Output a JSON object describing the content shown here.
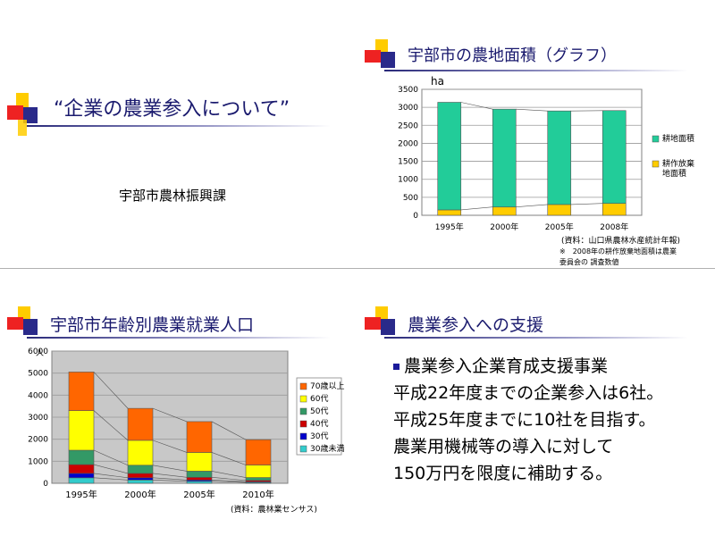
{
  "slides": {
    "title_slide": {
      "title": "“企業の農業参入について”",
      "subtitle": "宇部市農林振興課"
    },
    "farmland_slide": {
      "title": "宇部市の農地面積（グラフ）",
      "source": "(資料：山口県農林水産統計年報)",
      "note_line1": "※　2008年の耕作放棄地面積は農業",
      "note_line2": "委員会の 調査数値"
    },
    "workforce_slide": {
      "title": "宇部市年齢別農業就業人口",
      "source": "(資料：農林業センサス)"
    },
    "support_slide": {
      "title": "農業参入への支援",
      "bullet": "農業参入企業育成支援事業",
      "line1": "平成22年度までの企業参入は6社。",
      "line2": "平成25年度までに10社を目指す。",
      "line3": "農業用機械等の導入に対して",
      "line4": "150万円を限度に補助する。"
    }
  },
  "chart_data": [
    {
      "type": "bar",
      "stacked": true,
      "categories": [
        "1995年",
        "2000年",
        "2005年",
        "2008年"
      ],
      "ylabel": "ha",
      "ylim": [
        0,
        3500
      ],
      "yticks": [
        0,
        500,
        1000,
        1500,
        2000,
        2500,
        3000,
        3500
      ],
      "grid": true,
      "legend_position": "right",
      "series": [
        {
          "name": "耕作放棄\n地面積",
          "color": "#ffcc00",
          "values": [
            150,
            230,
            300,
            330
          ]
        },
        {
          "name": "耕地面積",
          "color": "#22cc99",
          "values": [
            2990,
            2720,
            2600,
            2580
          ]
        }
      ]
    },
    {
      "type": "bar",
      "stacked": true,
      "categories": [
        "1995年",
        "2000年",
        "2005年",
        "2010年"
      ],
      "ylabel": "人",
      "ylim": [
        0,
        6000
      ],
      "yticks": [
        0,
        1000,
        2000,
        3000,
        4000,
        5000,
        6000
      ],
      "grid": true,
      "legend_position": "right",
      "series": [
        {
          "name": "30歳未満",
          "color": "#33cccc",
          "values": [
            250,
            150,
            90,
            40
          ]
        },
        {
          "name": "30代",
          "color": "#0000cc",
          "values": [
            200,
            100,
            60,
            30
          ]
        },
        {
          "name": "40代",
          "color": "#cc0000",
          "values": [
            400,
            200,
            120,
            60
          ]
        },
        {
          "name": "50代",
          "color": "#339966",
          "values": [
            650,
            370,
            280,
            130
          ]
        },
        {
          "name": "60代",
          "color": "#ffff00",
          "values": [
            1800,
            1130,
            850,
            570
          ]
        },
        {
          "name": "70歳以上",
          "color": "#ff6600",
          "values": [
            1750,
            1450,
            1400,
            1150
          ]
        }
      ]
    }
  ],
  "theme": {
    "title_color": "#1a1a6e",
    "deco_yellow": "#ffcc00",
    "deco_red": "#ee2222",
    "deco_blue": "#2a2a8a"
  }
}
